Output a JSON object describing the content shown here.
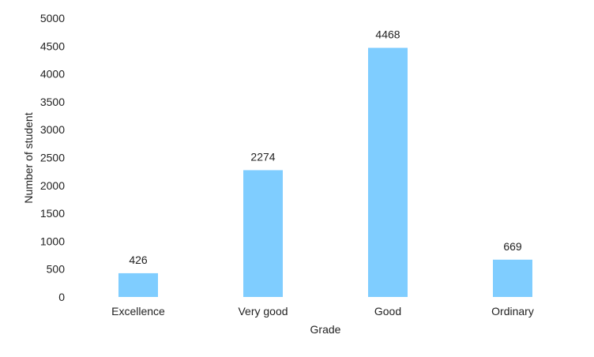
{
  "chart_data": {
    "type": "bar",
    "title": "",
    "xlabel": "Grade",
    "ylabel": "Number of student",
    "categories": [
      "Excellence",
      "Very good",
      "Good",
      "Ordinary"
    ],
    "values": [
      426,
      2274,
      4468,
      669
    ],
    "data_labels": [
      "426",
      "2274",
      "4468",
      "669"
    ],
    "ylim": [
      0,
      5000
    ],
    "yticks": [
      0,
      500,
      1000,
      1500,
      2000,
      2500,
      3000,
      3500,
      4000,
      4500,
      5000
    ],
    "grid": false,
    "legend": "none",
    "bar_color": "#7fcdff"
  }
}
